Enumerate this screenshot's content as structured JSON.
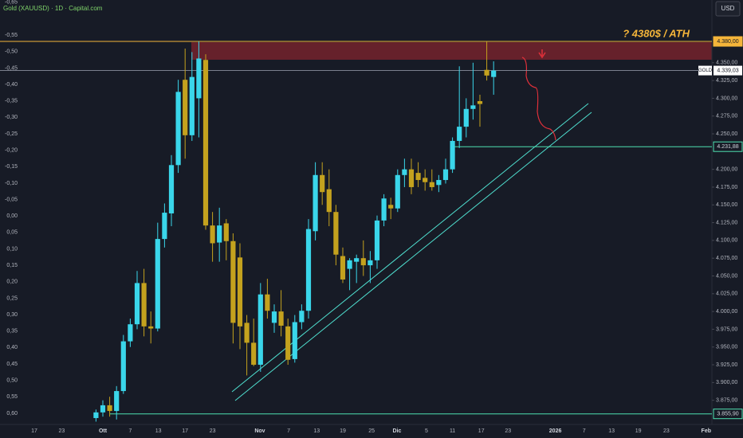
{
  "chart_data": {
    "type": "candlestick",
    "title": "Gold (XAUUSD) · 1D · Capital.com",
    "currency": "USD",
    "annotation": "? 4380$ / ATH",
    "x": [
      9,
      10,
      11,
      12,
      13,
      14,
      15,
      16,
      17,
      18,
      19,
      20,
      21,
      22,
      23,
      24,
      25,
      26,
      27,
      28,
      29,
      30,
      31,
      32,
      33,
      34,
      35,
      36,
      37,
      38,
      39,
      40,
      41,
      42,
      43,
      44,
      45,
      46,
      47,
      48,
      49,
      50,
      51,
      52,
      53,
      54,
      55,
      56,
      57,
      58,
      59,
      60,
      61,
      62,
      63,
      64,
      65,
      66,
      67
    ],
    "open": [
      3850,
      3858,
      3868,
      3860,
      3888,
      3958,
      3982,
      4040,
      3979,
      3976,
      4102,
      4138,
      4206,
      4326,
      4248,
      4300,
      4354,
      4121,
      4097,
      4124,
      4099,
      4076,
      3984,
      3956,
      3925,
      4024,
      3984,
      4000,
      3979,
      3933,
      3985,
      4001,
      4113,
      4192,
      4172,
      4140,
      4078,
      4060,
      4070,
      4075,
      4065,
      4072,
      4128,
      4150,
      4145,
      4192,
      4200,
      4195,
      4188,
      4182,
      4178,
      4185,
      4200,
      4240,
      4260,
      4285,
      4296,
      4340,
      4330
    ],
    "high": [
      3862,
      3875,
      3880,
      3895,
      3967,
      3990,
      4057,
      4060,
      4000,
      4125,
      4152,
      4220,
      4326,
      4370,
      4365,
      4380,
      4362,
      4140,
      4146,
      4130,
      4110,
      4096,
      3995,
      3990,
      4040,
      4046,
      4010,
      4030,
      3990,
      3995,
      4010,
      4130,
      4210,
      4210,
      4200,
      4150,
      4090,
      4075,
      4080,
      4100,
      4085,
      4135,
      4165,
      4160,
      4200,
      4215,
      4215,
      4210,
      4200,
      4200,
      4192,
      4215,
      4245,
      4345,
      4300,
      4350,
      4305,
      4380,
      4352
    ],
    "low": [
      3845,
      3852,
      3852,
      3848,
      3884,
      3950,
      3975,
      3965,
      3955,
      3972,
      4090,
      4120,
      4195,
      4215,
      4240,
      4245,
      4115,
      4070,
      4070,
      4072,
      3955,
      3947,
      3910,
      3923,
      3915,
      3990,
      3970,
      3965,
      3925,
      3928,
      3975,
      3990,
      4100,
      4150,
      4120,
      4065,
      4040,
      4030,
      4040,
      4050,
      4040,
      4060,
      4120,
      4130,
      4140,
      4175,
      4165,
      4175,
      4170,
      4170,
      4168,
      4180,
      4195,
      4230,
      4245,
      4270,
      4260,
      4325,
      4305
    ],
    "close": [
      3858,
      3868,
      3860,
      3888,
      3958,
      3982,
      4040,
      3979,
      3976,
      4102,
      4139,
      4206,
      4309,
      4248,
      4330,
      4356,
      4121,
      4096,
      4121,
      4099,
      3984,
      3979,
      3956,
      3925,
      4024,
      4001,
      4000,
      3980,
      3932,
      3985,
      4001,
      4116,
      4192,
      4168,
      4140,
      4080,
      4045,
      4072,
      4075,
      4065,
      4072,
      4128,
      4159,
      4145,
      4192,
      4200,
      4175,
      4185,
      4182,
      4175,
      4185,
      4200,
      4240,
      4260,
      4285,
      4290,
      4292,
      4332,
      4339
    ],
    "up_color": "#3ad6ea",
    "down_color": "#c4a21e",
    "xlim": [
      -5,
      98.84
    ],
    "ylim": [
      3841,
      4438.3
    ],
    "y2lim": [
      0.634,
      -0.657
    ],
    "xticks": [
      {
        "value": 0,
        "label": "17"
      },
      {
        "value": 4,
        "label": "23"
      },
      {
        "value": 10,
        "label": "Ott"
      },
      {
        "value": 14,
        "label": "7"
      },
      {
        "value": 18.1,
        "label": "13"
      },
      {
        "value": 22,
        "label": "17"
      },
      {
        "value": 26,
        "label": "23"
      },
      {
        "value": 32.9,
        "label": "Nov"
      },
      {
        "value": 37.1,
        "label": "7"
      },
      {
        "value": 41.2,
        "label": "13"
      },
      {
        "value": 45,
        "label": "19"
      },
      {
        "value": 49.2,
        "label": "25"
      },
      {
        "value": 52.9,
        "label": "Dic"
      },
      {
        "value": 57.2,
        "label": "5"
      },
      {
        "value": 61,
        "label": "11"
      },
      {
        "value": 65.2,
        "label": "17"
      },
      {
        "value": 69.1,
        "label": "23"
      },
      {
        "value": 76,
        "label": "2026"
      },
      {
        "value": 80.2,
        "label": "7"
      },
      {
        "value": 84.2,
        "label": "13"
      },
      {
        "value": 88.1,
        "label": "19"
      },
      {
        "value": 92.2,
        "label": "23"
      },
      {
        "value": 98,
        "label": "Feb"
      }
    ],
    "yticks": [
      {
        "value": 4350,
        "label": "4.350,00"
      },
      {
        "value": 4325,
        "label": "4.325,00"
      },
      {
        "value": 4300,
        "label": "4.300,00"
      },
      {
        "value": 4275,
        "label": "4.275,00"
      },
      {
        "value": 4250,
        "label": "4.250,00"
      },
      {
        "value": 4200,
        "label": "4.200,00"
      },
      {
        "value": 4175,
        "label": "4.175,00"
      },
      {
        "value": 4150,
        "label": "4.150,00"
      },
      {
        "value": 4125,
        "label": "4.125,00"
      },
      {
        "value": 4100,
        "label": "4.100,00"
      },
      {
        "value": 4075,
        "label": "4.075,00"
      },
      {
        "value": 4050,
        "label": "4.050,00"
      },
      {
        "value": 4025,
        "label": "4.025,00"
      },
      {
        "value": 4000,
        "label": "4.000,00"
      },
      {
        "value": 3975,
        "label": "3.975,00"
      },
      {
        "value": 3950,
        "label": "3.950,00"
      },
      {
        "value": 3925,
        "label": "3.925,00"
      },
      {
        "value": 3900,
        "label": "3.900,00"
      },
      {
        "value": 3875,
        "label": "3.875,00"
      }
    ],
    "y2ticks": [
      {
        "value": -0.65,
        "label": "-0,65"
      },
      {
        "value": -0.55,
        "label": "-0,55"
      },
      {
        "value": -0.5,
        "label": "-0,50"
      },
      {
        "value": -0.45,
        "label": "-0,45"
      },
      {
        "value": -0.4,
        "label": "-0,40"
      },
      {
        "value": -0.35,
        "label": "-0,35"
      },
      {
        "value": -0.3,
        "label": "-0,30"
      },
      {
        "value": -0.25,
        "label": "-0,25"
      },
      {
        "value": -0.2,
        "label": "-0,20"
      },
      {
        "value": -0.15,
        "label": "-0,15"
      },
      {
        "value": -0.1,
        "label": "-0,10"
      },
      {
        "value": -0.05,
        "label": "-0,05"
      },
      {
        "value": 0,
        "label": "0,00"
      },
      {
        "value": 0.05,
        "label": "0,05"
      },
      {
        "value": 0.1,
        "label": "0,10"
      },
      {
        "value": 0.15,
        "label": "0,15"
      },
      {
        "value": 0.2,
        "label": "0,20"
      },
      {
        "value": 0.25,
        "label": "0,25"
      },
      {
        "value": 0.3,
        "label": "0,30"
      },
      {
        "value": 0.35,
        "label": "0,35"
      },
      {
        "value": 0.4,
        "label": "0,40"
      },
      {
        "value": 0.45,
        "label": "0,45"
      },
      {
        "value": 0.5,
        "label": "0,50"
      },
      {
        "value": 0.55,
        "label": "0,55"
      },
      {
        "value": 0.6,
        "label": "0,60"
      }
    ],
    "levels": [
      {
        "value": 4380,
        "label": "4.380,00",
        "color": "#f5b53a",
        "start": -5
      },
      {
        "value": 4231.88,
        "label": "4.231,88",
        "color": "#4fe0b0",
        "start": 61
      },
      {
        "value": 3855.9,
        "label": "3.855,90",
        "color": "#4fe0b0",
        "start": 11
      }
    ],
    "last_price": {
      "name": "GOLD",
      "value": 4339.03,
      "label": "4.339,03",
      "color": "#8a8f9c"
    }
  }
}
